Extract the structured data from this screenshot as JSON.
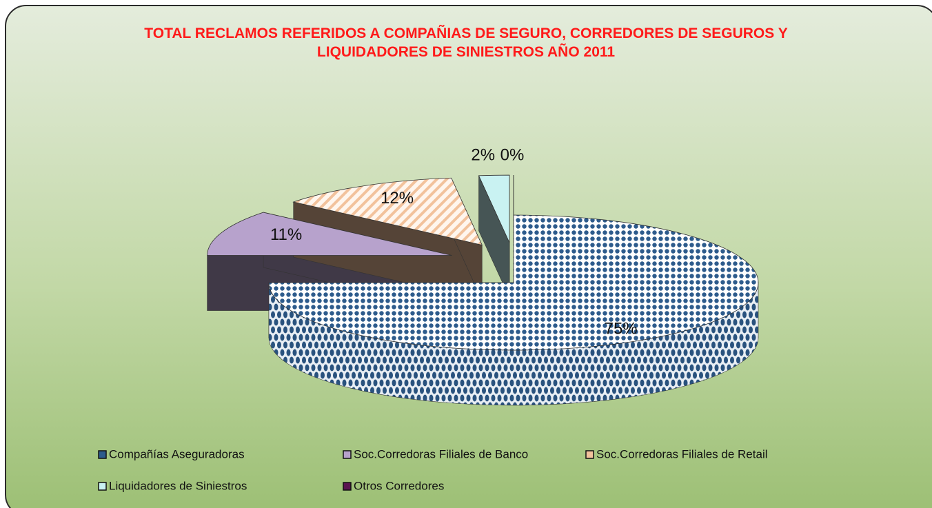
{
  "chart_data": {
    "type": "pie",
    "title": "TOTAL RECLAMOS REFERIDOS A COMPAÑIAS DE SEGURO, CORREDORES DE SEGUROS Y LIQUIDADORES DE SINIESTROS AÑO 2011",
    "categories": [
      "Compañías Aseguradoras",
      "Soc.Corredoras Filiales de Banco",
      "Soc.Corredoras Filiales de Retail",
      "Liquidadores de Siniestros",
      "Otros Corredores"
    ],
    "values": [
      75,
      11,
      12,
      2,
      0
    ],
    "value_labels": [
      "75%",
      "11%",
      "12%",
      "2%",
      "0%"
    ],
    "colors": [
      "#2d5b8c",
      "#b7a2cc",
      "#f2c29c",
      "#c9f2f2",
      "#5a1450"
    ],
    "patterns": [
      "dots",
      "solid",
      "stripes",
      "solid",
      "solid"
    ],
    "legend": "bottom"
  }
}
